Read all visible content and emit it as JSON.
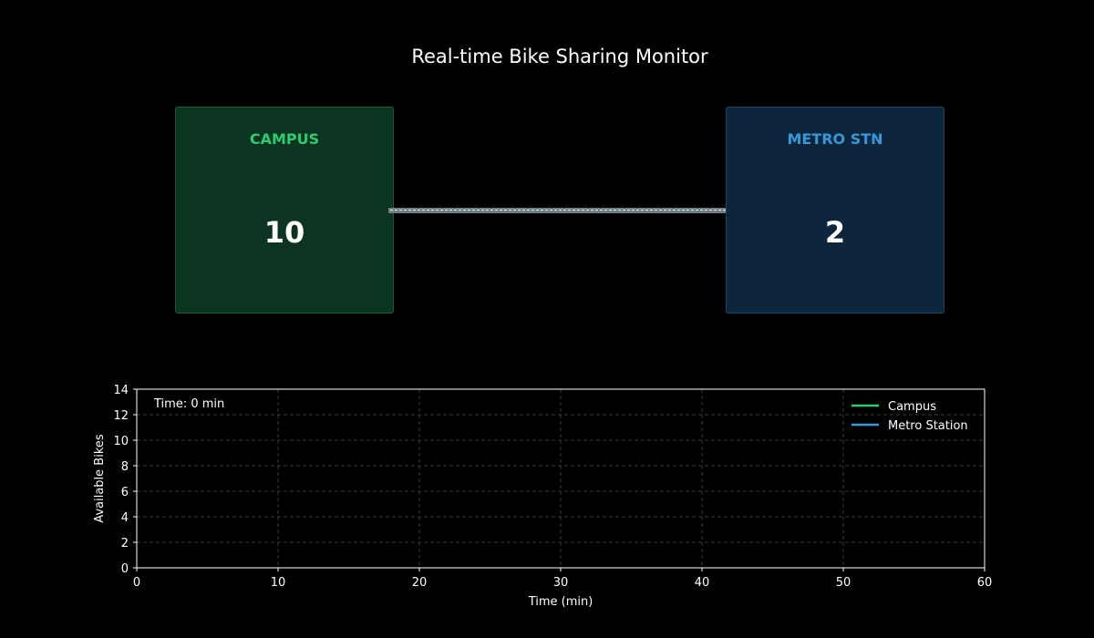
{
  "title": "Real-time Bike Sharing Monitor",
  "stations": {
    "campus": {
      "name": "CAMPUS",
      "count": "10",
      "color": "#2ecc71"
    },
    "metro": {
      "name": "METRO STN",
      "count": "2",
      "color": "#3498db"
    }
  },
  "chart_data": {
    "type": "line",
    "xlabel": "Time (min)",
    "ylabel": "Available Bikes",
    "xlim": [
      0,
      60
    ],
    "ylim": [
      0,
      14
    ],
    "xticks": [
      0,
      10,
      20,
      30,
      40,
      50,
      60
    ],
    "yticks": [
      0,
      2,
      4,
      6,
      8,
      10,
      12,
      14
    ],
    "grid": true,
    "legend_position": "top-right",
    "annotation": "Time: 0 min",
    "series": [
      {
        "name": "Campus",
        "color": "#2ecc71",
        "x": [],
        "y": []
      },
      {
        "name": "Metro Station",
        "color": "#3498db",
        "x": [],
        "y": []
      }
    ]
  }
}
